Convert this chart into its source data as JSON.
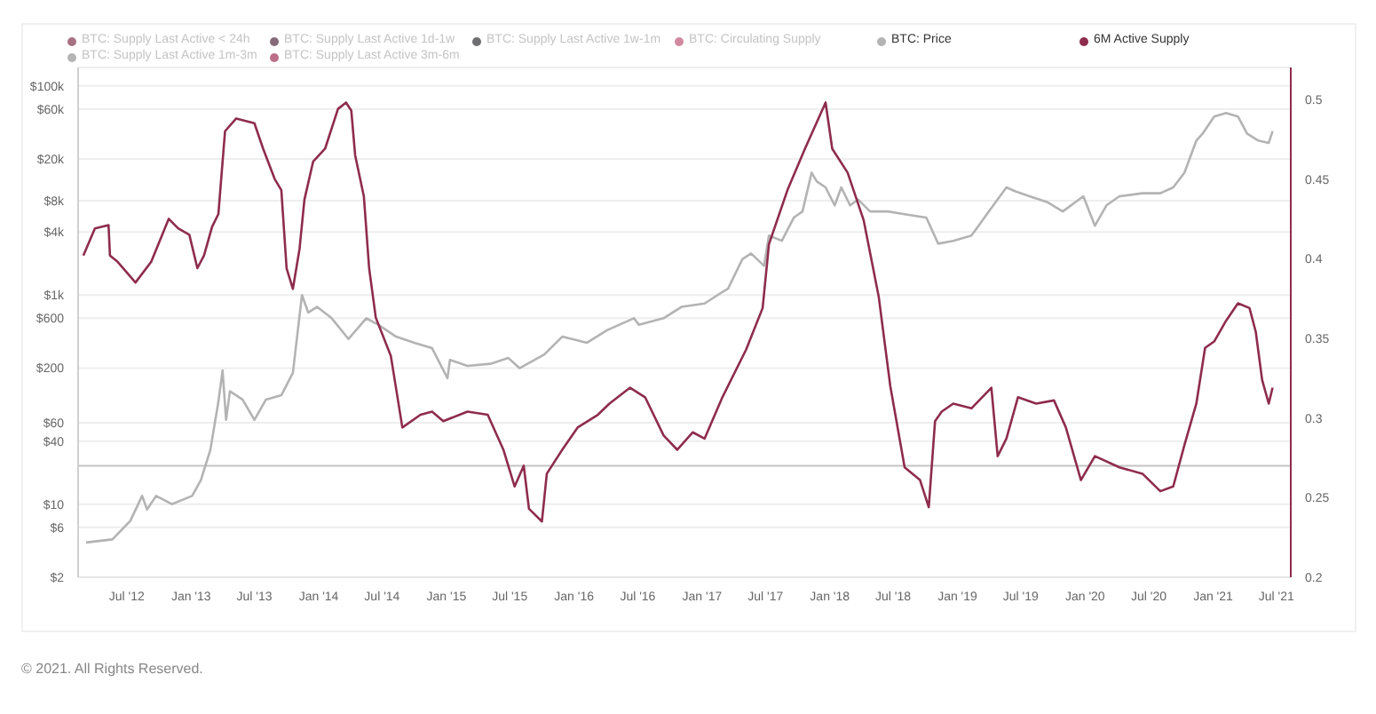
{
  "chart_data": {
    "type": "line",
    "xlim": [
      "2012-02-13",
      "2021-08-11"
    ],
    "xticks": [
      {
        "value": "2012-07-01",
        "label": "Jul '12"
      },
      {
        "value": "2013-01-01",
        "label": "Jan '13"
      },
      {
        "value": "2013-07-01",
        "label": "Jul '13"
      },
      {
        "value": "2014-01-01",
        "label": "Jan '14"
      },
      {
        "value": "2014-07-01",
        "label": "Jul '14"
      },
      {
        "value": "2015-01-01",
        "label": "Jan '15"
      },
      {
        "value": "2015-07-01",
        "label": "Jul '15"
      },
      {
        "value": "2016-01-01",
        "label": "Jan '16"
      },
      {
        "value": "2016-07-01",
        "label": "Jul '16"
      },
      {
        "value": "2017-01-01",
        "label": "Jan '17"
      },
      {
        "value": "2017-07-01",
        "label": "Jul '17"
      },
      {
        "value": "2018-01-01",
        "label": "Jan '18"
      },
      {
        "value": "2018-07-01",
        "label": "Jul '18"
      },
      {
        "value": "2019-01-01",
        "label": "Jan '19"
      },
      {
        "value": "2019-07-01",
        "label": "Jul '19"
      },
      {
        "value": "2020-01-01",
        "label": "Jan '20"
      },
      {
        "value": "2020-07-01",
        "label": "Jul '20"
      },
      {
        "value": "2021-01-01",
        "label": "Jan '21"
      },
      {
        "value": "2021-07-01",
        "label": "Jul '21"
      }
    ],
    "ylim": [
      2,
      150000
    ],
    "yticks": [
      {
        "value": 2,
        "label": "$2"
      },
      {
        "value": 6,
        "label": "$6"
      },
      {
        "value": 10,
        "label": "$10"
      },
      {
        "value": 40,
        "label": "$40"
      },
      {
        "value": 60,
        "label": "$60"
      },
      {
        "value": 200,
        "label": "$200"
      },
      {
        "value": 600,
        "label": "$600"
      },
      {
        "value": 1000,
        "label": "$1k"
      },
      {
        "value": 4000,
        "label": "$4k"
      },
      {
        "value": 8000,
        "label": "$8k"
      },
      {
        "value": 20000,
        "label": "$20k"
      },
      {
        "value": 60000,
        "label": "$60k"
      },
      {
        "value": 100000,
        "label": "$100k"
      }
    ],
    "y2lim": [
      0.2,
      0.52
    ],
    "y2ticks": [
      0.2,
      0.25,
      0.3,
      0.35,
      0.4,
      0.45,
      0.5
    ],
    "log": "y",
    "grid": "y",
    "legend": "top",
    "marker": "none",
    "ref_lines": [
      {
        "axis": "y2",
        "value": 0.27,
        "color": "#c4c4c4"
      }
    ],
    "series": [
      {
        "name": "BTC: Supply Last Active < 24h",
        "color": "#8b4257"
      },
      {
        "name": "BTC: Supply Last Active 1d-1w",
        "color": "#5c3a4c"
      },
      {
        "name": "BTC: Supply Last Active 1w-1m",
        "color": "#3d3d40"
      },
      {
        "name": "BTC: Circulating Supply",
        "color": "#c0627f"
      },
      {
        "name": "BTC: Price",
        "color": "#b3b3b3",
        "x": [
          "2012-03-07",
          "2012-05-21",
          "2012-07-11",
          "2012-08-14",
          "2012-08-28",
          "2012-09-23",
          "2012-11-07",
          "2013-01-04",
          "2013-01-29",
          "2013-02-25",
          "2013-03-20",
          "2013-04-01",
          "2013-04-11",
          "2013-04-22",
          "2013-05-28",
          "2013-07-01",
          "2013-08-03",
          "2013-09-16",
          "2013-10-19",
          "2013-11-14",
          "2013-12-02",
          "2013-12-27",
          "2014-02-07",
          "2014-03-27",
          "2014-05-17",
          "2014-06-20",
          "2014-08-10",
          "2014-10-01",
          "2014-11-21",
          "2015-01-04",
          "2015-01-11",
          "2015-03-02",
          "2015-05-07",
          "2015-06-27",
          "2015-07-29",
          "2015-10-08",
          "2015-11-28",
          "2016-02-07",
          "2016-04-04",
          "2016-06-20",
          "2016-07-04",
          "2016-09-13",
          "2016-11-03",
          "2017-01-08",
          "2017-02-28",
          "2017-03-16",
          "2017-04-26",
          "2017-05-21",
          "2017-06-27",
          "2017-07-11",
          "2017-08-17",
          "2017-09-20",
          "2017-10-15",
          "2017-11-10",
          "2017-11-25",
          "2017-12-20",
          "2018-01-15",
          "2018-02-03",
          "2018-02-28",
          "2018-03-23",
          "2018-04-26",
          "2018-06-16",
          "2018-08-07",
          "2018-10-04",
          "2018-11-07",
          "2018-12-20",
          "2019-02-10",
          "2019-04-01",
          "2019-05-21",
          "2019-06-16",
          "2019-07-26",
          "2019-09-16",
          "2019-10-29",
          "2019-12-27",
          "2020-01-29",
          "2020-03-02",
          "2020-04-08",
          "2020-06-13",
          "2020-08-03",
          "2020-09-09",
          "2020-10-11",
          "2020-11-14",
          "2020-12-02",
          "2021-01-04",
          "2021-02-07",
          "2021-03-13",
          "2021-04-08",
          "2021-05-10",
          "2021-06-09",
          "2021-06-20"
        ],
        "values": [
          4.3,
          4.6,
          6.9,
          12,
          8.9,
          12,
          10,
          12,
          17,
          33,
          95,
          190,
          64,
          120,
          100,
          64,
          100,
          110,
          180,
          1000,
          680,
          770,
          600,
          380,
          600,
          520,
          400,
          350,
          310,
          160,
          240,
          210,
          220,
          250,
          200,
          270,
          400,
          350,
          460,
          600,
          520,
          600,
          770,
          830,
          1070,
          1150,
          2200,
          2500,
          1900,
          3700,
          3300,
          5500,
          6300,
          14800,
          12200,
          10700,
          7200,
          10700,
          7200,
          8200,
          6300,
          6300,
          5900,
          5500,
          3100,
          3300,
          3700,
          6300,
          10700,
          9800,
          8800,
          7700,
          6300,
          8800,
          4600,
          7200,
          8800,
          9400,
          9400,
          10700,
          14800,
          30000,
          35000,
          51000,
          55000,
          51000,
          35000,
          30000,
          28500,
          37000
        ]
      },
      {
        "name": "6M Active Supply",
        "color": "#8e2c4e",
        "axis": "y2",
        "x": [
          "2012-02-28",
          "2012-04-01",
          "2012-05-10",
          "2012-05-14",
          "2012-06-05",
          "2012-07-26",
          "2012-09-09",
          "2012-10-29",
          "2012-11-25",
          "2012-12-27",
          "2013-01-19",
          "2013-02-07",
          "2013-03-02",
          "2013-03-20",
          "2013-04-08",
          "2013-05-10",
          "2013-07-01",
          "2013-07-26",
          "2013-08-28",
          "2013-09-16",
          "2013-10-01",
          "2013-10-19",
          "2013-11-07",
          "2013-11-21",
          "2013-12-16",
          "2014-01-19",
          "2014-02-25",
          "2014-03-20",
          "2014-04-04",
          "2014-04-15",
          "2014-05-10",
          "2014-05-25",
          "2014-06-13",
          "2014-07-26",
          "2014-08-28",
          "2014-10-19",
          "2014-11-21",
          "2014-12-23",
          "2015-03-02",
          "2015-04-29",
          "2015-06-13",
          "2015-07-15",
          "2015-08-10",
          "2015-08-25",
          "2015-10-01",
          "2015-10-15",
          "2015-11-28",
          "2016-01-11",
          "2016-03-09",
          "2016-04-11",
          "2016-06-09",
          "2016-07-22",
          "2016-09-13",
          "2016-10-22",
          "2016-12-05",
          "2017-01-08",
          "2017-02-28",
          "2017-05-07",
          "2017-06-23",
          "2017-07-11",
          "2017-09-02",
          "2017-10-22",
          "2017-12-20",
          "2018-01-08",
          "2018-02-21",
          "2018-04-08",
          "2018-05-21",
          "2018-06-23",
          "2018-08-03",
          "2018-09-16",
          "2018-10-11",
          "2018-10-29",
          "2018-11-17",
          "2018-12-20",
          "2019-02-10",
          "2019-04-08",
          "2019-04-26",
          "2019-05-21",
          "2019-06-23",
          "2019-08-14",
          "2019-10-04",
          "2019-11-07",
          "2019-12-20",
          "2020-01-29",
          "2020-04-08",
          "2020-06-13",
          "2020-08-03",
          "2020-09-09",
          "2020-10-11",
          "2020-11-14",
          "2020-12-09",
          "2021-01-04",
          "2021-02-07",
          "2021-03-13",
          "2021-04-15",
          "2021-05-03",
          "2021-05-21",
          "2021-06-09",
          "2021-06-20"
        ],
        "values": [
          0.402,
          0.419,
          0.421,
          0.402,
          0.398,
          0.385,
          0.398,
          0.425,
          0.419,
          0.415,
          0.394,
          0.402,
          0.42,
          0.428,
          0.48,
          0.488,
          0.485,
          0.469,
          0.45,
          0.443,
          0.394,
          0.381,
          0.406,
          0.437,
          0.461,
          0.469,
          0.494,
          0.498,
          0.493,
          0.465,
          0.439,
          0.394,
          0.363,
          0.339,
          0.294,
          0.302,
          0.304,
          0.298,
          0.304,
          0.302,
          0.28,
          0.257,
          0.27,
          0.243,
          0.235,
          0.265,
          0.28,
          0.294,
          0.302,
          0.309,
          0.319,
          0.313,
          0.289,
          0.28,
          0.291,
          0.287,
          0.313,
          0.343,
          0.369,
          0.409,
          0.443,
          0.469,
          0.498,
          0.469,
          0.454,
          0.424,
          0.376,
          0.32,
          0.269,
          0.261,
          0.244,
          0.298,
          0.304,
          0.309,
          0.306,
          0.319,
          0.276,
          0.287,
          0.313,
          0.309,
          0.311,
          0.294,
          0.261,
          0.276,
          0.269,
          0.265,
          0.254,
          0.257,
          0.283,
          0.309,
          0.344,
          0.348,
          0.361,
          0.372,
          0.369,
          0.354,
          0.324,
          0.309,
          0.319
        ]
      },
      {
        "name": "BTC: Supply Last Active 1m-3m",
        "color": "#9b9b9b"
      },
      {
        "name": "BTC: Supply Last Active 3m-6m",
        "color": "#a53e62"
      }
    ],
    "annotations": [
      "© 2021. All Rights Reserved."
    ]
  }
}
